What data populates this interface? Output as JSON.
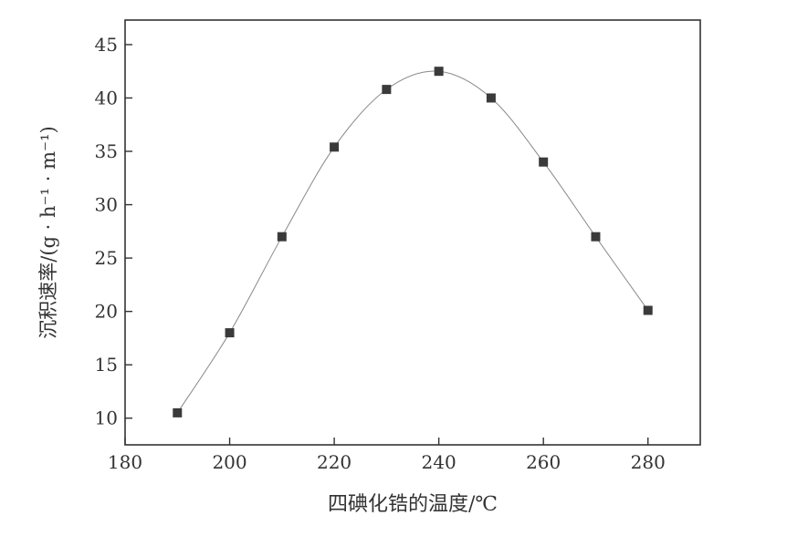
{
  "chart_data": {
    "type": "line",
    "title": "",
    "xlabel": "四碘化锆的温度/℃",
    "ylabel": "沉积速率/(g · h⁻¹ · m⁻¹)",
    "xlim": [
      180,
      290
    ],
    "ylim": [
      7.5,
      47.3
    ],
    "xticks": [
      180,
      200,
      220,
      240,
      260,
      280
    ],
    "yticks": [
      10,
      15,
      20,
      25,
      30,
      35,
      40,
      45
    ],
    "grid": false,
    "legend": "none",
    "marker": "square",
    "smooth_curve": true,
    "colors": {
      "marker": "#3a3a3a",
      "line": "#888888",
      "axis": "#333333"
    },
    "series": [
      {
        "x": [
          190,
          200,
          210,
          220,
          230,
          240,
          250,
          260,
          270,
          280
        ],
        "y": [
          10.5,
          18,
          27,
          35.4,
          40.8,
          42.5,
          40,
          34,
          27,
          20.1
        ]
      }
    ]
  }
}
